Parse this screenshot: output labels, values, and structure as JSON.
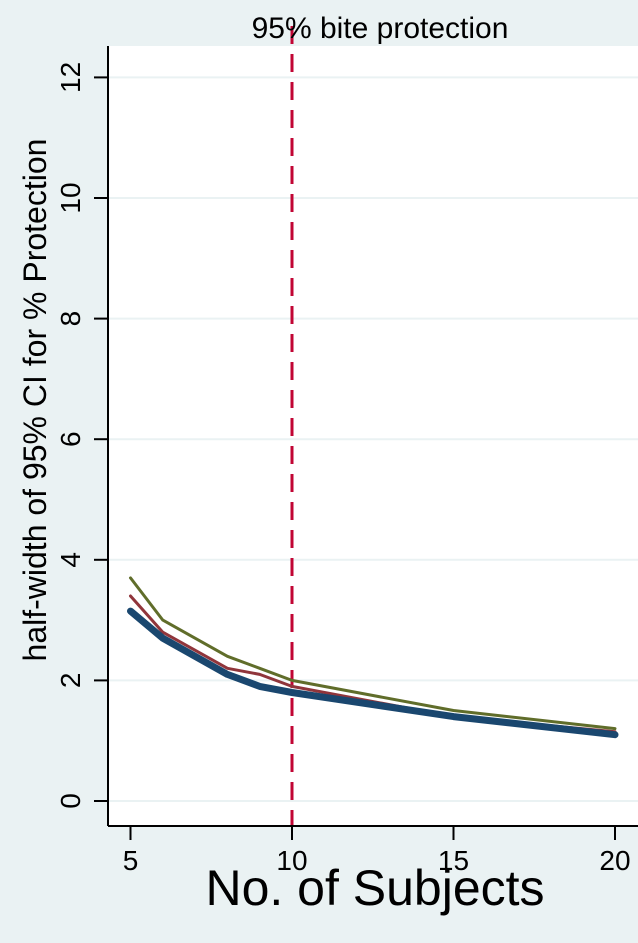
{
  "chart_data": {
    "type": "line",
    "title": "95% bite protection",
    "xlabel": "No. of Subjects",
    "ylabel": "half-width of 95% CI for % Protection",
    "xlim": [
      4,
      20.5
    ],
    "ylim": [
      0,
      12.5
    ],
    "xticks": [
      5,
      10,
      15,
      20
    ],
    "yticks": [
      0,
      2,
      4,
      6,
      8,
      10,
      12
    ],
    "grid": true,
    "legend": "none",
    "reference_line": {
      "x": 10,
      "style": "dashed",
      "color": "#c10534"
    },
    "series": [
      {
        "color": "#606d2a",
        "x": [
          5,
          6,
          8,
          9,
          10,
          15,
          20
        ],
        "values": [
          3.7,
          3.0,
          2.4,
          2.2,
          2.0,
          1.5,
          1.2
        ]
      },
      {
        "color": "#90353b",
        "x": [
          5,
          6,
          8,
          9,
          10,
          15,
          20
        ],
        "values": [
          3.4,
          2.8,
          2.2,
          2.1,
          1.9,
          1.4,
          1.15
        ]
      },
      {
        "color": "#1a476f",
        "x": [
          5,
          6,
          8,
          9,
          10,
          15,
          20
        ],
        "values": [
          3.15,
          2.7,
          2.1,
          1.9,
          1.8,
          1.4,
          1.1
        ]
      }
    ]
  }
}
